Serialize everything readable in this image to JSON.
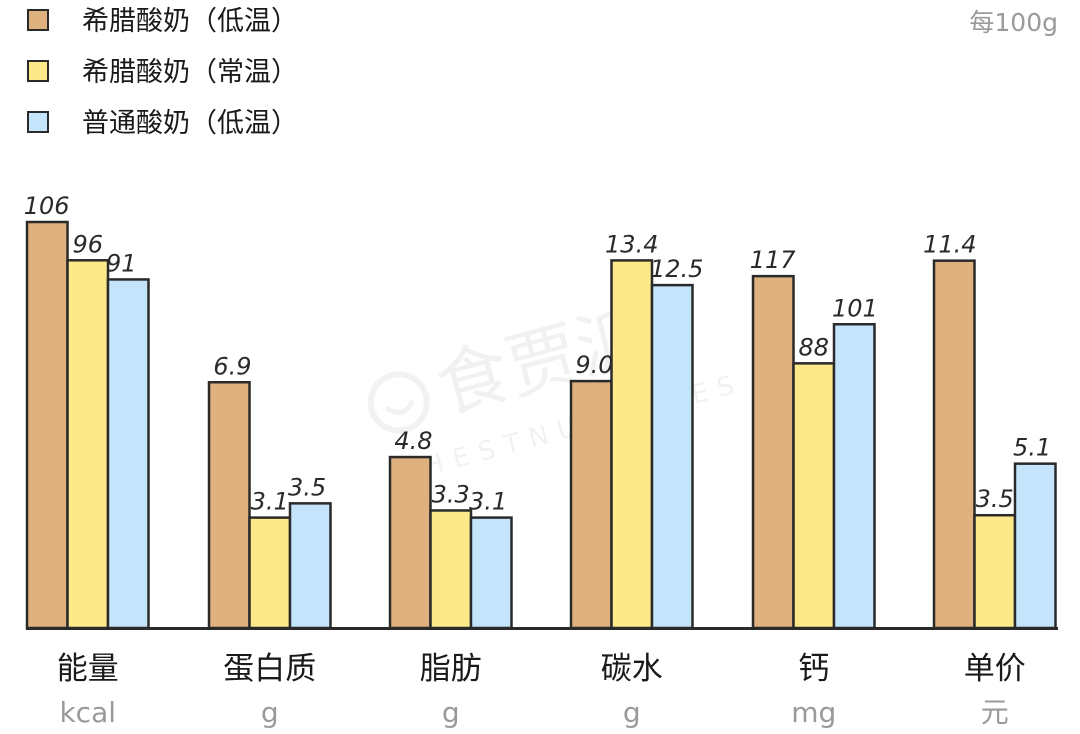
{
  "chart_data": {
    "type": "bar",
    "note": "每100g",
    "categories": [
      "能量",
      "蛋白质",
      "脂肪",
      "碳水",
      "钙",
      "单价"
    ],
    "units": [
      "kcal",
      "g",
      "g",
      "g",
      "mg",
      "元"
    ],
    "series": [
      {
        "name": "希腊酸奶（低温）",
        "color": "#deb17e",
        "values": [
          106,
          6.9,
          4.8,
          9.0,
          117,
          11.4
        ],
        "labels": [
          "106",
          "6.9",
          "4.8",
          "9.0",
          "117",
          "11.4"
        ]
      },
      {
        "name": "希腊酸奶（常温）",
        "color": "#fde98a",
        "values": [
          96,
          3.1,
          3.3,
          13.4,
          88,
          3.5
        ],
        "labels": [
          "96",
          "3.1",
          "3.3",
          "13.4",
          "88",
          "3.5"
        ]
      },
      {
        "name": "普通酸奶（低温）",
        "color": "#c4e4fb",
        "values": [
          91,
          3.5,
          3.1,
          12.5,
          101,
          5.1
        ],
        "labels": [
          "91",
          "3.5",
          "3.1",
          "12.5",
          "101",
          "5.1"
        ]
      }
    ],
    "category_max": [
      106,
      11.4,
      11.4,
      14.8,
      135,
      12.6
    ],
    "legend_position": "top-left",
    "grid": false
  },
  "watermark": {
    "brand": "食贾派",
    "sub": "CHESTNUTMATES"
  }
}
